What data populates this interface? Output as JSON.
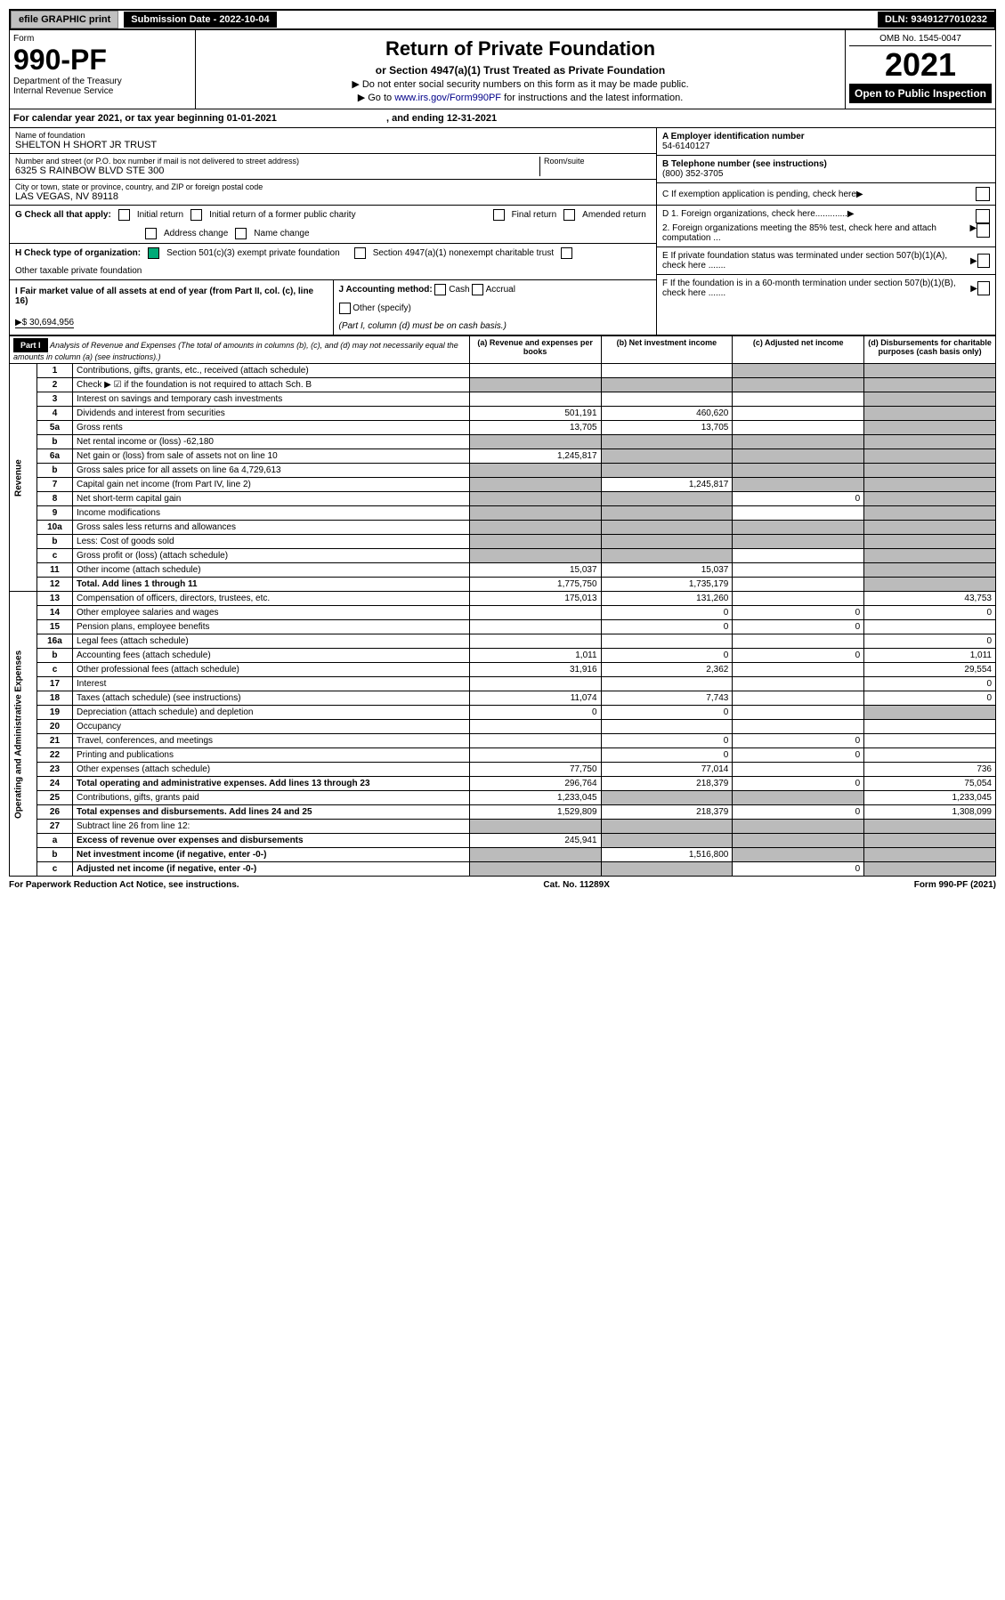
{
  "topbar": {
    "efile": "efile GRAPHIC print",
    "submission": "Submission Date - 2022-10-04",
    "dln": "DLN: 93491277010232"
  },
  "header": {
    "form": "Form",
    "number": "990-PF",
    "dept": "Department of the Treasury",
    "irs": "Internal Revenue Service",
    "title": "Return of Private Foundation",
    "subtitle": "or Section 4947(a)(1) Trust Treated as Private Foundation",
    "note1": "▶ Do not enter social security numbers on this form as it may be made public.",
    "note2": "▶ Go to www.irs.gov/Form990PF for instructions and the latest information.",
    "link": "www.irs.gov/Form990PF",
    "omb": "OMB No. 1545-0047",
    "year": "2021",
    "open": "Open to Public Inspection"
  },
  "cal": {
    "text": "For calendar year 2021, or tax year beginning 01-01-2021",
    "ending": ", and ending 12-31-2021"
  },
  "meta": {
    "name_lbl": "Name of foundation",
    "name": "SHELTON H SHORT JR TRUST",
    "addr_lbl": "Number and street (or P.O. box number if mail is not delivered to street address)",
    "addr": "6325 S RAINBOW BLVD STE 300",
    "room_lbl": "Room/suite",
    "city_lbl": "City or town, state or province, country, and ZIP or foreign postal code",
    "city": "LAS VEGAS, NV  89118",
    "a_lbl": "A Employer identification number",
    "a": "54-6140127",
    "b_lbl": "B Telephone number (see instructions)",
    "b": "(800) 352-3705",
    "c": "C If exemption application is pending, check here",
    "d1": "D 1. Foreign organizations, check here.............",
    "d2": "2. Foreign organizations meeting the 85% test, check here and attach computation ...",
    "e": "E If private foundation status was terminated under section 507(b)(1)(A), check here .......",
    "f": "F If the foundation is in a 60-month termination under section 507(b)(1)(B), check here .......",
    "g": "G Check all that apply:",
    "g1": "Initial return",
    "g2": "Initial return of a former public charity",
    "g3": "Final return",
    "g4": "Amended return",
    "g5": "Address change",
    "g6": "Name change",
    "h": "H Check type of organization:",
    "h1": "Section 501(c)(3) exempt private foundation",
    "h2": "Section 4947(a)(1) nonexempt charitable trust",
    "h3": "Other taxable private foundation",
    "i": "I Fair market value of all assets at end of year (from Part II, col. (c), line 16)",
    "ival": "▶$  30,694,956",
    "j": "J Accounting method:",
    "j1": "Cash",
    "j2": "Accrual",
    "j3": "Other (specify)",
    "jnote": "(Part I, column (d) must be on cash basis.)"
  },
  "part1": {
    "label": "Part I",
    "title": "Analysis of Revenue and Expenses (The total of amounts in columns (b), (c), and (d) may not necessarily equal the amounts in column (a) (see instructions).)",
    "cols": {
      "a": "(a)   Revenue and expenses per books",
      "b": "(b)   Net investment income",
      "c": "(c)   Adjusted net income",
      "d": "(d)   Disbursements for charitable purposes (cash basis only)"
    }
  },
  "revenue_lbl": "Revenue",
  "expense_lbl": "Operating and Administrative Expenses",
  "rows": [
    {
      "n": "1",
      "d": "Contributions, gifts, grants, etc., received (attach schedule)",
      "a": "",
      "b": "",
      "c": "g",
      "dd": "g"
    },
    {
      "n": "2",
      "d": "Check ▶ ☑ if the foundation is not required to attach Sch. B",
      "a": "g",
      "b": "g",
      "c": "g",
      "dd": "g"
    },
    {
      "n": "3",
      "d": "Interest on savings and temporary cash investments",
      "a": "",
      "b": "",
      "c": "",
      "dd": "g"
    },
    {
      "n": "4",
      "d": "Dividends and interest from securities",
      "a": "501,191",
      "b": "460,620",
      "c": "",
      "dd": "g"
    },
    {
      "n": "5a",
      "d": "Gross rents",
      "a": "13,705",
      "b": "13,705",
      "c": "",
      "dd": "g"
    },
    {
      "n": "b",
      "d": "Net rental income or (loss)                              -62,180",
      "a": "g",
      "b": "g",
      "c": "g",
      "dd": "g"
    },
    {
      "n": "6a",
      "d": "Net gain or (loss) from sale of assets not on line 10",
      "a": "1,245,817",
      "b": "g",
      "c": "g",
      "dd": "g"
    },
    {
      "n": "b",
      "d": "Gross sales price for all assets on line 6a          4,729,613",
      "a": "g",
      "b": "g",
      "c": "g",
      "dd": "g"
    },
    {
      "n": "7",
      "d": "Capital gain net income (from Part IV, line 2)",
      "a": "g",
      "b": "1,245,817",
      "c": "g",
      "dd": "g"
    },
    {
      "n": "8",
      "d": "Net short-term capital gain",
      "a": "g",
      "b": "g",
      "c": "0",
      "dd": "g"
    },
    {
      "n": "9",
      "d": "Income modifications",
      "a": "g",
      "b": "g",
      "c": "",
      "dd": "g"
    },
    {
      "n": "10a",
      "d": "Gross sales less returns and allowances",
      "a": "g",
      "b": "g",
      "c": "g",
      "dd": "g"
    },
    {
      "n": "b",
      "d": "Less: Cost of goods sold",
      "a": "g",
      "b": "g",
      "c": "g",
      "dd": "g"
    },
    {
      "n": "c",
      "d": "Gross profit or (loss) (attach schedule)",
      "a": "g",
      "b": "g",
      "c": "",
      "dd": "g"
    },
    {
      "n": "11",
      "d": "Other income (attach schedule)",
      "a": "15,037",
      "b": "15,037",
      "c": "",
      "dd": "g"
    },
    {
      "n": "12",
      "d": "Total. Add lines 1 through 11",
      "a": "1,775,750",
      "b": "1,735,179",
      "c": "",
      "dd": "g",
      "bold": true
    }
  ],
  "erows": [
    {
      "n": "13",
      "d": "Compensation of officers, directors, trustees, etc.",
      "a": "175,013",
      "b": "131,260",
      "c": "",
      "dd": "43,753"
    },
    {
      "n": "14",
      "d": "Other employee salaries and wages",
      "a": "",
      "b": "0",
      "c": "0",
      "dd": "0"
    },
    {
      "n": "15",
      "d": "Pension plans, employee benefits",
      "a": "",
      "b": "0",
      "c": "0",
      "dd": ""
    },
    {
      "n": "16a",
      "d": "Legal fees (attach schedule)",
      "a": "",
      "b": "",
      "c": "",
      "dd": "0"
    },
    {
      "n": "b",
      "d": "Accounting fees (attach schedule)",
      "a": "1,011",
      "b": "0",
      "c": "0",
      "dd": "1,011"
    },
    {
      "n": "c",
      "d": "Other professional fees (attach schedule)",
      "a": "31,916",
      "b": "2,362",
      "c": "",
      "dd": "29,554"
    },
    {
      "n": "17",
      "d": "Interest",
      "a": "",
      "b": "",
      "c": "",
      "dd": "0"
    },
    {
      "n": "18",
      "d": "Taxes (attach schedule) (see instructions)",
      "a": "11,074",
      "b": "7,743",
      "c": "",
      "dd": "0"
    },
    {
      "n": "19",
      "d": "Depreciation (attach schedule) and depletion",
      "a": "0",
      "b": "0",
      "c": "",
      "dd": "g"
    },
    {
      "n": "20",
      "d": "Occupancy",
      "a": "",
      "b": "",
      "c": "",
      "dd": ""
    },
    {
      "n": "21",
      "d": "Travel, conferences, and meetings",
      "a": "",
      "b": "0",
      "c": "0",
      "dd": ""
    },
    {
      "n": "22",
      "d": "Printing and publications",
      "a": "",
      "b": "0",
      "c": "0",
      "dd": ""
    },
    {
      "n": "23",
      "d": "Other expenses (attach schedule)",
      "a": "77,750",
      "b": "77,014",
      "c": "",
      "dd": "736"
    },
    {
      "n": "24",
      "d": "Total operating and administrative expenses. Add lines 13 through 23",
      "a": "296,764",
      "b": "218,379",
      "c": "0",
      "dd": "75,054",
      "bold": true
    },
    {
      "n": "25",
      "d": "Contributions, gifts, grants paid",
      "a": "1,233,045",
      "b": "g",
      "c": "g",
      "dd": "1,233,045"
    },
    {
      "n": "26",
      "d": "Total expenses and disbursements. Add lines 24 and 25",
      "a": "1,529,809",
      "b": "218,379",
      "c": "0",
      "dd": "1,308,099",
      "bold": true
    },
    {
      "n": "27",
      "d": "Subtract line 26 from line 12:",
      "a": "g",
      "b": "g",
      "c": "g",
      "dd": "g"
    },
    {
      "n": "a",
      "d": "Excess of revenue over expenses and disbursements",
      "a": "245,941",
      "b": "g",
      "c": "g",
      "dd": "g",
      "bold": true
    },
    {
      "n": "b",
      "d": "Net investment income (if negative, enter -0-)",
      "a": "g",
      "b": "1,516,800",
      "c": "g",
      "dd": "g",
      "bold": true
    },
    {
      "n": "c",
      "d": "Adjusted net income (if negative, enter -0-)",
      "a": "g",
      "b": "g",
      "c": "0",
      "dd": "g",
      "bold": true
    }
  ],
  "footer": {
    "l": "For Paperwork Reduction Act Notice, see instructions.",
    "c": "Cat. No. 11289X",
    "r": "Form 990-PF (2021)"
  }
}
